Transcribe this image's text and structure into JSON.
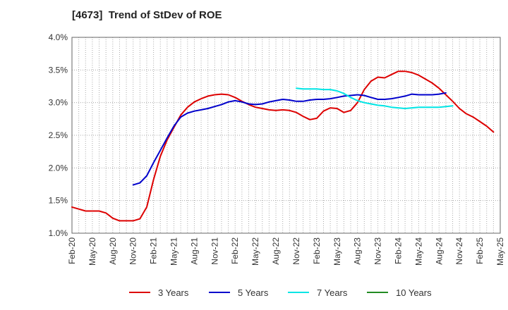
{
  "chart_data": {
    "type": "line",
    "title": "[4673]  Trend of StDev of ROE",
    "xlabel": "",
    "ylabel": "",
    "x_start": "2020-02",
    "x_ticks": [
      "Feb-20",
      "May-20",
      "Aug-20",
      "Nov-20",
      "Feb-21",
      "May-21",
      "Aug-21",
      "Nov-21",
      "Feb-22",
      "May-22",
      "Aug-22",
      "Nov-22",
      "Feb-23",
      "May-23",
      "Aug-23",
      "Nov-23",
      "Feb-24",
      "May-24",
      "Aug-24",
      "Nov-24",
      "Feb-25",
      "May-25"
    ],
    "y_ticks": [
      "1.0%",
      "1.5%",
      "2.0%",
      "2.5%",
      "3.0%",
      "3.5%",
      "4.0%"
    ],
    "ylim": [
      1.0,
      4.0
    ],
    "y_unit": "%",
    "grid": "dotted",
    "legend_position": "bottom",
    "series": [
      {
        "name": "3 Years",
        "color": "#dd0000",
        "start": "2020-02",
        "values": [
          1.4,
          1.37,
          1.34,
          1.34,
          1.34,
          1.31,
          1.23,
          1.19,
          1.19,
          1.19,
          1.22,
          1.4,
          1.82,
          2.18,
          2.43,
          2.62,
          2.81,
          2.93,
          3.01,
          3.06,
          3.1,
          3.12,
          3.13,
          3.12,
          3.08,
          3.02,
          2.97,
          2.93,
          2.91,
          2.89,
          2.88,
          2.89,
          2.88,
          2.85,
          2.79,
          2.74,
          2.76,
          2.87,
          2.92,
          2.91,
          2.85,
          2.88,
          3.0,
          3.2,
          3.33,
          3.39,
          3.38,
          3.43,
          3.48,
          3.48,
          3.46,
          3.42,
          3.36,
          3.3,
          3.22,
          3.12,
          3.02,
          2.91,
          2.83,
          2.78,
          2.71,
          2.64,
          2.55
        ]
      },
      {
        "name": "5 Years",
        "color": "#0000cc",
        "start": "2020-11",
        "values": [
          1.74,
          1.77,
          1.88,
          2.08,
          2.27,
          2.46,
          2.64,
          2.78,
          2.84,
          2.87,
          2.89,
          2.91,
          2.94,
          2.97,
          3.01,
          3.03,
          3.01,
          2.98,
          2.97,
          2.98,
          3.01,
          3.03,
          3.05,
          3.04,
          3.02,
          3.02,
          3.04,
          3.05,
          3.05,
          3.06,
          3.08,
          3.1,
          3.11,
          3.12,
          3.11,
          3.08,
          3.05,
          3.05,
          3.06,
          3.08,
          3.1,
          3.13,
          3.12,
          3.12,
          3.12,
          3.13,
          3.15
        ]
      },
      {
        "name": "7 Years",
        "color": "#00e5e5",
        "start": "2022-11",
        "values": [
          3.22,
          3.21,
          3.21,
          3.21,
          3.2,
          3.2,
          3.18,
          3.14,
          3.08,
          3.03,
          3.0,
          2.98,
          2.96,
          2.95,
          2.93,
          2.92,
          2.91,
          2.92,
          2.93,
          2.93,
          2.93,
          2.93,
          2.94,
          2.95
        ]
      },
      {
        "name": "10 Years",
        "color": "#228b22",
        "start": "2020-02",
        "values": []
      }
    ]
  }
}
